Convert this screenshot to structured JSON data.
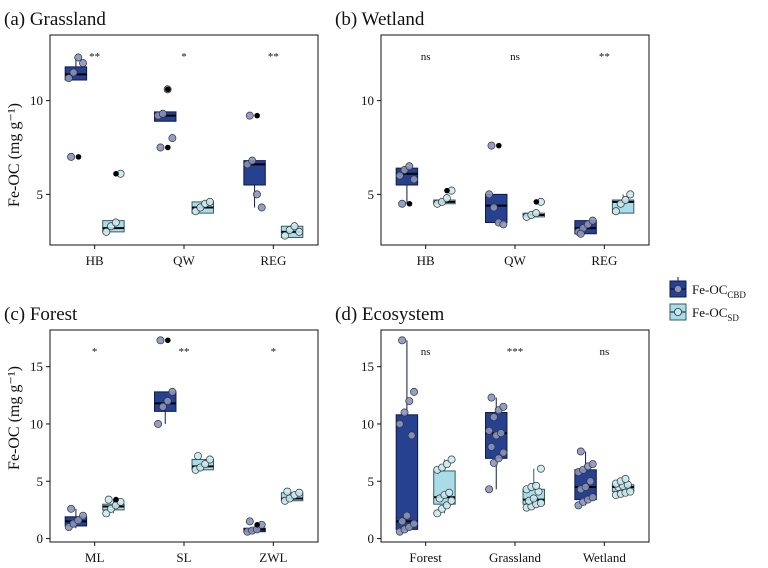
{
  "colors": {
    "cbd_fill": "#26418f",
    "cbd_line": "#0d1a4a",
    "sd_fill": "#a8dce8",
    "sd_line": "#3a5a66",
    "sd_point": "#c9e9f2",
    "cbd_point": "#8a95c0"
  },
  "figure": {
    "ylabel": "Fe-OC (mg g⁻¹)",
    "legend": {
      "items": [
        {
          "key": "cbd",
          "label": "Fe-OC",
          "sub": "CBD"
        },
        {
          "key": "sd",
          "label": "Fe-OC",
          "sub": "SD"
        }
      ]
    }
  },
  "chart_data": [
    {
      "type": "box",
      "tag": "(a)",
      "title": "Grassland",
      "ylim": [
        2.3,
        13.5
      ],
      "yticks": [
        5,
        10
      ],
      "show_ylabel": true,
      "categories": [
        "HB",
        "QW",
        "REG"
      ],
      "significance": [
        "**",
        "*",
        "**"
      ],
      "series": [
        {
          "name": "Fe-OC CBD",
          "key": "cbd",
          "stats": [
            {
              "q1": 11.1,
              "median": 11.4,
              "q3": 11.8,
              "lo": 11.1,
              "hi": 12.3
            },
            {
              "q1": 8.9,
              "median": 9.2,
              "q3": 9.4,
              "lo": 8.9,
              "hi": 9.4
            },
            {
              "q1": 5.5,
              "median": 6.6,
              "q3": 6.8,
              "lo": 4.3,
              "hi": 6.8
            }
          ],
          "points": [
            [
              11.2,
              11.5,
              12.3,
              12.0,
              7.0
            ],
            [
              9.2,
              9.3,
              10.6,
              8.0,
              7.5
            ],
            [
              6.6,
              6.8,
              5.0,
              4.3,
              9.2
            ]
          ]
        },
        {
          "name": "Fe-OC SD",
          "key": "sd",
          "stats": [
            {
              "q1": 3.0,
              "median": 3.2,
              "q3": 3.6,
              "lo": 3.0,
              "hi": 3.6
            },
            {
              "q1": 4.0,
              "median": 4.3,
              "q3": 4.6,
              "lo": 4.0,
              "hi": 4.6
            },
            {
              "q1": 2.7,
              "median": 3.0,
              "q3": 3.3,
              "lo": 2.7,
              "hi": 3.3
            }
          ],
          "points": [
            [
              3.0,
              3.3,
              3.5,
              6.1
            ],
            [
              4.1,
              4.3,
              4.5,
              4.6
            ],
            [
              2.8,
              3.1,
              3.3,
              3.0
            ]
          ]
        }
      ],
      "outliers": [
        {
          "category": 0,
          "series": 0,
          "value": 7.0
        },
        {
          "category": 0,
          "series": 1,
          "value": 6.1
        },
        {
          "category": 1,
          "series": 0,
          "value": 10.6
        },
        {
          "category": 1,
          "series": 0,
          "value": 7.5
        },
        {
          "category": 2,
          "series": 0,
          "value": 9.2
        }
      ]
    },
    {
      "type": "box",
      "tag": "(b)",
      "title": "Wetland",
      "ylim": [
        2.3,
        13.5
      ],
      "yticks": [
        5,
        10
      ],
      "show_ylabel": false,
      "categories": [
        "HB",
        "QW",
        "REG"
      ],
      "significance": [
        "ns",
        "ns",
        "**"
      ],
      "series": [
        {
          "name": "Fe-OC CBD",
          "key": "cbd",
          "stats": [
            {
              "q1": 5.5,
              "median": 6.1,
              "q3": 6.4,
              "lo": 4.5,
              "hi": 6.5
            },
            {
              "q1": 3.5,
              "median": 4.4,
              "q3": 5.0,
              "lo": 3.4,
              "hi": 5.0
            },
            {
              "q1": 2.9,
              "median": 3.2,
              "q3": 3.6,
              "lo": 2.9,
              "hi": 3.6
            }
          ],
          "points": [
            [
              6.0,
              6.3,
              6.5,
              5.8,
              4.5
            ],
            [
              5.0,
              4.3,
              3.5,
              3.4,
              7.6
            ],
            [
              3.0,
              3.2,
              3.4,
              3.6,
              2.9
            ]
          ]
        },
        {
          "name": "Fe-OC SD",
          "key": "sd",
          "stats": [
            {
              "q1": 4.5,
              "median": 4.6,
              "q3": 4.7,
              "lo": 4.5,
              "hi": 4.7
            },
            {
              "q1": 3.8,
              "median": 3.9,
              "q3": 4.0,
              "lo": 3.8,
              "hi": 4.0
            },
            {
              "q1": 4.0,
              "median": 4.6,
              "q3": 4.7,
              "lo": 4.0,
              "hi": 5.0
            }
          ],
          "points": [
            [
              4.5,
              4.6,
              4.8,
              5.2
            ],
            [
              3.8,
              3.9,
              4.0,
              4.6
            ],
            [
              4.1,
              4.5,
              4.7,
              5.0
            ]
          ]
        }
      ],
      "outliers": [
        {
          "category": 0,
          "series": 0,
          "value": 4.5
        },
        {
          "category": 0,
          "series": 1,
          "value": 5.2
        },
        {
          "category": 1,
          "series": 0,
          "value": 7.6
        },
        {
          "category": 1,
          "series": 1,
          "value": 4.6
        }
      ]
    },
    {
      "type": "box",
      "tag": "(c)",
      "title": "Forest",
      "ylim": [
        -0.3,
        18.2
      ],
      "yticks": [
        0,
        5,
        10,
        15
      ],
      "show_ylabel": true,
      "categories": [
        "ML",
        "SL",
        "ZWL"
      ],
      "significance": [
        "*",
        "**",
        "*"
      ],
      "series": [
        {
          "name": "Fe-OC CBD",
          "key": "cbd",
          "stats": [
            {
              "q1": 1.1,
              "median": 1.5,
              "q3": 1.9,
              "lo": 0.9,
              "hi": 2.6
            },
            {
              "q1": 11.1,
              "median": 11.8,
              "q3": 12.8,
              "lo": 10.0,
              "hi": 12.8
            },
            {
              "q1": 0.6,
              "median": 0.8,
              "q3": 0.9,
              "lo": 0.6,
              "hi": 0.9
            }
          ],
          "points": [
            [
              1.0,
              1.3,
              1.6,
              2.0,
              2.6
            ],
            [
              10.0,
              11.5,
              12.0,
              12.8,
              17.3
            ],
            [
              0.6,
              0.7,
              0.8,
              1.2,
              1.5
            ]
          ]
        },
        {
          "name": "Fe-OC SD",
          "key": "sd",
          "stats": [
            {
              "q1": 2.5,
              "median": 2.8,
              "q3": 3.0,
              "lo": 2.2,
              "hi": 3.4
            },
            {
              "q1": 6.0,
              "median": 6.3,
              "q3": 6.9,
              "lo": 6.0,
              "hi": 6.9
            },
            {
              "q1": 3.3,
              "median": 3.5,
              "q3": 4.0,
              "lo": 3.3,
              "hi": 4.0
            }
          ],
          "points": [
            [
              2.2,
              2.6,
              2.9,
              3.2,
              3.4
            ],
            [
              6.0,
              6.2,
              6.5,
              6.9,
              7.2
            ],
            [
              3.3,
              3.5,
              3.8,
              4.0,
              4.1
            ]
          ]
        }
      ],
      "outliers": [
        {
          "category": 0,
          "series": 1,
          "value": 3.4
        },
        {
          "category": 1,
          "series": 0,
          "value": 17.3
        },
        {
          "category": 2,
          "series": 0,
          "value": 1.2
        }
      ]
    },
    {
      "type": "box",
      "tag": "(d)",
      "title": "Ecosystem",
      "ylim": [
        -0.3,
        18.2
      ],
      "yticks": [
        0,
        5,
        10,
        15
      ],
      "show_ylabel": false,
      "categories": [
        "Forest",
        "Grassland",
        "Wetland"
      ],
      "significance": [
        "ns",
        "***",
        "ns"
      ],
      "series": [
        {
          "name": "Fe-OC CBD",
          "key": "cbd",
          "stats": [
            {
              "q1": 0.8,
              "median": 1.5,
              "q3": 10.8,
              "lo": 0.6,
              "hi": 17.3
            },
            {
              "q1": 7.0,
              "median": 9.2,
              "q3": 11.0,
              "lo": 4.3,
              "hi": 12.3
            },
            {
              "q1": 3.4,
              "median": 4.5,
              "q3": 6.0,
              "lo": 2.9,
              "hi": 7.6
            }
          ],
          "points": [
            [
              0.6,
              0.8,
              1.0,
              1.3,
              1.5,
              2.0,
              9.0,
              10.0,
              11.0,
              12.0,
              12.8,
              17.3
            ],
            [
              4.3,
              6.6,
              7.0,
              7.5,
              8.0,
              9.0,
              9.2,
              9.4,
              10.6,
              11.2,
              11.5,
              12.3
            ],
            [
              2.9,
              3.2,
              3.4,
              3.6,
              4.3,
              4.5,
              5.0,
              5.8,
              6.0,
              6.3,
              6.5,
              7.6
            ]
          ]
        },
        {
          "name": "Fe-OC SD",
          "key": "sd",
          "stats": [
            {
              "q1": 3.0,
              "median": 3.6,
              "q3": 5.9,
              "lo": 2.2,
              "hi": 6.9
            },
            {
              "q1": 3.0,
              "median": 3.4,
              "q3": 4.3,
              "lo": 2.7,
              "hi": 6.1
            },
            {
              "q1": 4.1,
              "median": 4.5,
              "q3": 4.7,
              "lo": 3.8,
              "hi": 5.2
            }
          ],
          "points": [
            [
              2.2,
              2.6,
              2.9,
              3.3,
              3.5,
              3.8,
              4.0,
              6.0,
              6.2,
              6.5,
              6.9
            ],
            [
              2.7,
              2.8,
              3.0,
              3.1,
              3.3,
              3.5,
              4.1,
              4.3,
              4.5,
              4.6,
              6.1
            ],
            [
              3.8,
              3.9,
              4.0,
              4.1,
              4.5,
              4.6,
              4.7,
              4.8,
              5.0,
              5.2
            ]
          ]
        }
      ],
      "outliers": []
    }
  ]
}
